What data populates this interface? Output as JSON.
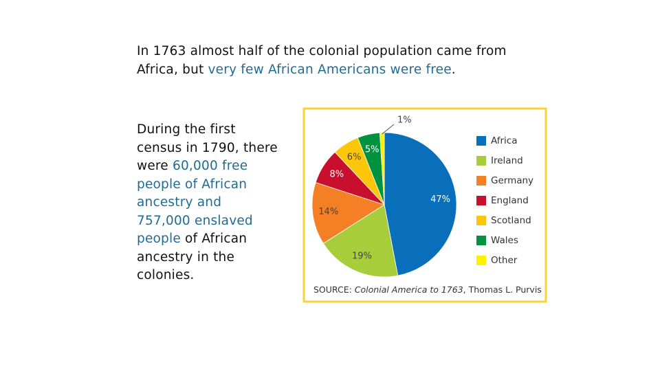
{
  "text": {
    "highlight_color": "#1f6b94",
    "paragraphs": [
      [
        {
          "text": "In 1763 almost half of the colonial population came from Africa, but "
        },
        {
          "text": "very few African Americans were free",
          "highlight": true
        },
        {
          "text": "."
        }
      ],
      [
        {
          "text": "During the first census in 1790, there were "
        },
        {
          "text": "60,000 free people of African ancestry and 757,000 enslaved people",
          "highlight": true
        },
        {
          "text": " of African ancestry in the colonies."
        }
      ]
    ]
  },
  "chart_data": {
    "type": "pie",
    "categories": [
      "Africa",
      "Ireland",
      "Germany",
      "England",
      "Scotland",
      "Wales",
      "Other"
    ],
    "values": [
      47,
      19,
      14,
      8,
      6,
      5,
      1
    ],
    "value_labels": [
      "47%",
      "19%",
      "14%",
      "8%",
      "6%",
      "5%",
      "1%"
    ],
    "colors": [
      "#0a6fba",
      "#a8cd3a",
      "#f47f24",
      "#c8102e",
      "#fcc70a",
      "#00923f",
      "#fff200"
    ],
    "label_colors": [
      "#ffffff",
      "#444444",
      "#444444",
      "#ffffff",
      "#444444",
      "#ffffff",
      "#444444"
    ],
    "legend": "right",
    "source": [
      "SOURCE: ",
      "Colonial America to 1763",
      ", Thomas L. Purvis"
    ]
  }
}
